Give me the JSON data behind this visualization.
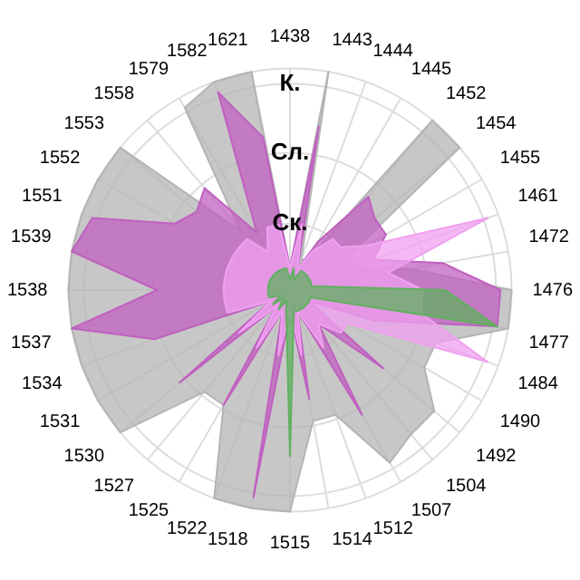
{
  "chart_data": {
    "type": "radar",
    "categories": [
      "1438",
      "1443",
      "1444",
      "1445",
      "1452",
      "1454",
      "1455",
      "1461",
      "1472",
      "1476",
      "1477",
      "1484",
      "1490",
      "1492",
      "1504",
      "1507",
      "1512",
      "1514",
      "1515",
      "1518",
      "1522",
      "1525",
      "1527",
      "1530",
      "1531",
      "1534",
      "1537",
      "1538",
      "1539",
      "1551",
      "1552",
      "1553",
      "1558",
      "1579",
      "1582",
      "1621"
    ],
    "ylim": [
      0,
      1
    ],
    "yticks": [
      {
        "value": 0.3,
        "label": "Ск."
      },
      {
        "value": 0.62,
        "label": "Сл."
      },
      {
        "value": 0.93,
        "label": "К."
      }
    ],
    "grid": true,
    "legend": false,
    "marker": "none",
    "series": [
      {
        "color": "#b4b4b4",
        "values": [
          0.1,
          1.0,
          0.15,
          0.15,
          1.0,
          1.0,
          0.3,
          0.3,
          0.55,
          1.0,
          1.0,
          0.7,
          0.7,
          0.85,
          0.85,
          0.9,
          0.6,
          0.6,
          1.0,
          1.0,
          1.0,
          0.6,
          0.6,
          1.0,
          1.0,
          1.0,
          1.0,
          1.0,
          1.0,
          1.0,
          1.0,
          1.0,
          0.35,
          0.95,
          1.0,
          1.0
        ]
      },
      {
        "color": "#c060c0",
        "values": [
          0.1,
          0.75,
          0.1,
          0.25,
          0.55,
          0.5,
          0.5,
          0.4,
          0.7,
          0.95,
          0.95,
          0.4,
          0.1,
          0.55,
          0.2,
          0.65,
          0.1,
          0.5,
          0.1,
          0.95,
          0.1,
          0.6,
          0.1,
          0.65,
          0.1,
          0.65,
          1.0,
          0.6,
          1.0,
          0.95,
          0.6,
          0.55,
          0.6,
          0.3,
          0.95,
          0.7
        ]
      },
      {
        "color": "#f0a0f0",
        "values": [
          0.1,
          0.3,
          0.1,
          0.2,
          0.3,
          0.3,
          0.4,
          0.95,
          0.45,
          0.6,
          0.6,
          0.95,
          0.3,
          0.3,
          0.2,
          0.3,
          0.1,
          0.3,
          0.1,
          0.3,
          0.1,
          0.3,
          0.1,
          0.3,
          0.1,
          0.3,
          0.3,
          0.3,
          0.3,
          0.3,
          0.3,
          0.3,
          0.3,
          0.2,
          0.3,
          0.3
        ]
      },
      {
        "color": "#60b060",
        "values": [
          0.05,
          0.1,
          0.05,
          0.1,
          0.1,
          0.1,
          0.1,
          0.1,
          0.1,
          0.7,
          0.95,
          0.1,
          0.1,
          0.1,
          0.1,
          0.1,
          0.1,
          0.1,
          0.75,
          0.1,
          0.05,
          0.1,
          0.05,
          0.1,
          0.05,
          0.1,
          0.1,
          0.1,
          0.1,
          0.1,
          0.1,
          0.1,
          0.1,
          0.1,
          0.1,
          0.1
        ]
      }
    ]
  }
}
